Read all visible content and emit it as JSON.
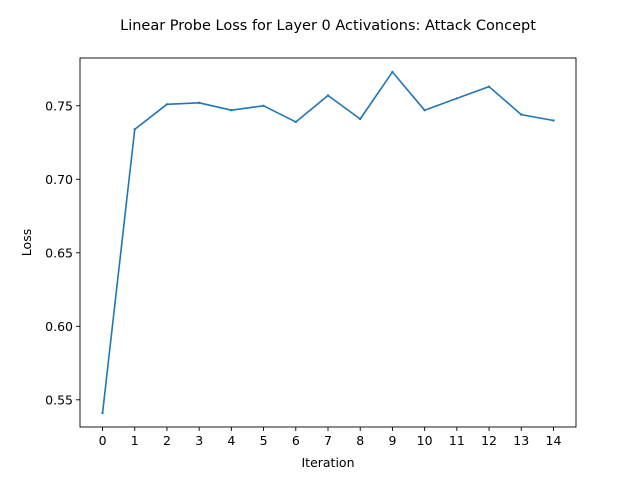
{
  "chart_data": {
    "type": "line",
    "title": "Linear Probe Loss for Layer 0 Activations: Attack Concept",
    "xlabel": "Iteration",
    "ylabel": "Loss",
    "x": [
      0,
      1,
      2,
      3,
      4,
      5,
      6,
      7,
      8,
      9,
      10,
      11,
      12,
      13,
      14
    ],
    "series": [
      {
        "values": [
          0.541,
          0.734,
          0.751,
          0.752,
          0.747,
          0.75,
          0.739,
          0.757,
          0.741,
          0.773,
          0.747,
          0.755,
          0.763,
          0.744,
          0.74
        ]
      }
    ],
    "xlim": [
      -0.7,
      14.7
    ],
    "ylim": [
      0.5315,
      0.7825
    ],
    "x_ticks": [
      "0",
      "1",
      "2",
      "3",
      "4",
      "5",
      "6",
      "7",
      "8",
      "9",
      "10",
      "11",
      "12",
      "13",
      "14"
    ],
    "y_ticks": [
      "0.55",
      "0.60",
      "0.65",
      "0.70",
      "0.75"
    ],
    "line_color": "#1f77b4",
    "grid": false,
    "legend": "none"
  }
}
